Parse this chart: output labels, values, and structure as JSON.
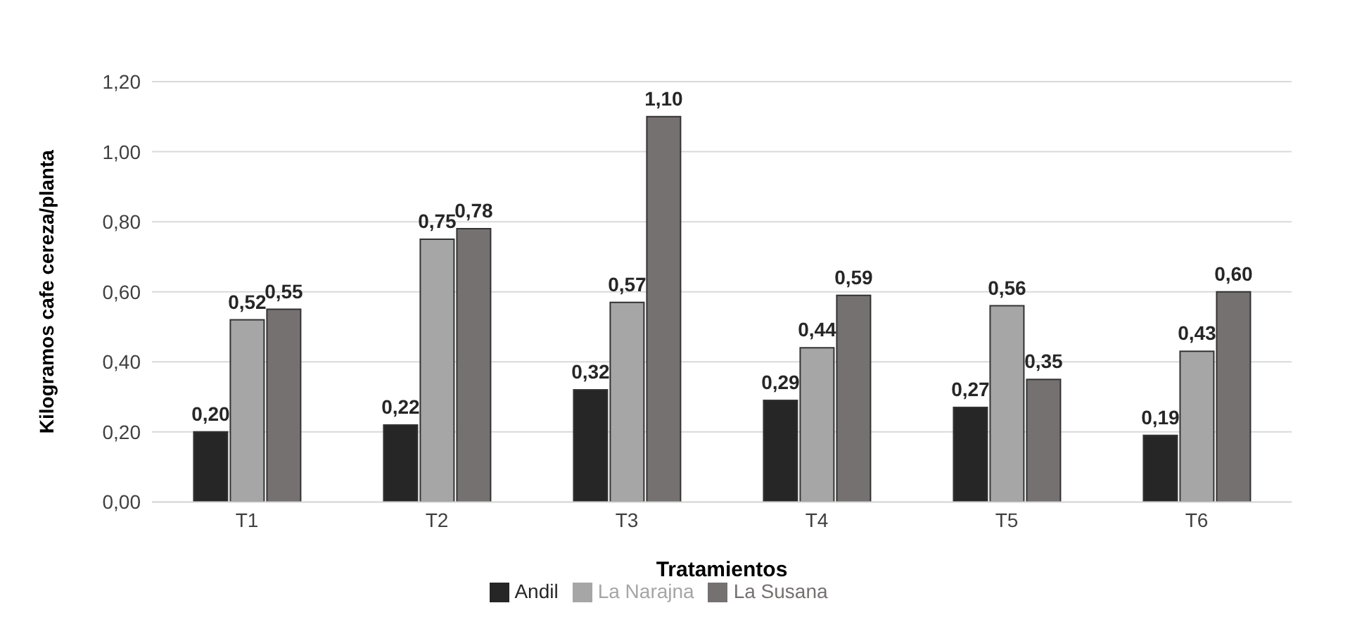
{
  "chart_data": {
    "type": "bar",
    "xlabel": "Tratamientos",
    "ylabel": "Kilogramos cafe cereza/planta",
    "categories": [
      "T1",
      "T2",
      "T3",
      "T4",
      "T5",
      "T6"
    ],
    "series": [
      {
        "name": "Andil",
        "color": "#262626",
        "values": [
          0.2,
          0.22,
          0.32,
          0.29,
          0.27,
          0.19
        ],
        "value_labels": [
          "0,20",
          "0,22",
          "0,32",
          "0,29",
          "0,27",
          "0,19"
        ]
      },
      {
        "name": "La Narajna",
        "color": "#a6a6a6",
        "values": [
          0.52,
          0.75,
          0.57,
          0.44,
          0.56,
          0.43
        ],
        "value_labels": [
          "0,52",
          "0,75",
          "0,57",
          "0,44",
          "0,56",
          "0,43"
        ]
      },
      {
        "name": "La Susana",
        "color": "#767171",
        "values": [
          0.55,
          0.78,
          1.1,
          0.59,
          0.35,
          0.6
        ],
        "value_labels": [
          "0,55",
          "0,78",
          "1,10",
          "0,59",
          "0,35",
          "0,60"
        ]
      }
    ],
    "ylim": [
      0,
      1.2
    ],
    "yticks": [
      {
        "value": 0,
        "label": "0,00"
      },
      {
        "value": 0.2,
        "label": "0,20"
      },
      {
        "value": 0.4,
        "label": "0,40"
      },
      {
        "value": 0.6,
        "label": "0,60"
      },
      {
        "value": 0.8,
        "label": "0,80"
      },
      {
        "value": 1,
        "label": "1,00"
      },
      {
        "value": 1.2,
        "label": "1,20"
      }
    ],
    "grid": "y",
    "legend": "bottom"
  }
}
